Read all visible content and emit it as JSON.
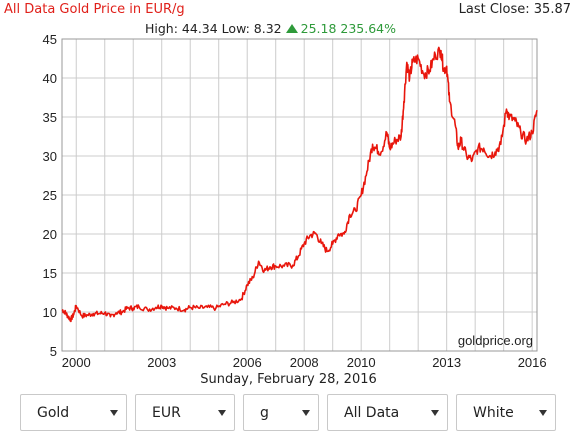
{
  "header": {
    "title": "All Data Gold Price in EUR/g",
    "last_close": "Last Close: 35.87",
    "high_low": "High: 44.34 Low: 8.32",
    "change": "25.18 235.64%",
    "up_icon": "triangle-up-icon"
  },
  "watermark": "goldprice.org",
  "date_label": "Sunday, February 28, 2016",
  "colors": {
    "line": "#e8160c",
    "title": "#e0201a",
    "change": "#2e9a3a",
    "grid": "#cccccc"
  },
  "chart_data": {
    "type": "line",
    "title": "All Data Gold Price in EUR/g",
    "xlabel": "",
    "ylabel": "",
    "xlim": [
      1999.5,
      2016.17
    ],
    "ylim": [
      5,
      45
    ],
    "yticks": [
      5,
      10,
      15,
      20,
      25,
      30,
      35,
      40,
      45
    ],
    "xticks": [
      2000,
      2003,
      2006,
      2008,
      2010,
      2013,
      2016
    ],
    "grid": true,
    "series": [
      {
        "x": [
          1999.5,
          1999.6,
          1999.7,
          1999.8,
          1999.9,
          2000.0,
          2000.2,
          2000.4,
          2000.6,
          2000.8,
          2001.0,
          2001.2,
          2001.4,
          2001.6,
          2001.8,
          2002.0,
          2002.2,
          2002.5,
          2002.8,
          2003.0,
          2003.2,
          2003.5,
          2003.8,
          2004.0,
          2004.3,
          2004.6,
          2004.9,
          2005.2,
          2005.5,
          2005.8,
          2006.0,
          2006.2,
          2006.4,
          2006.6,
          2006.8,
          2007.0,
          2007.3,
          2007.6,
          2007.8,
          2008.0,
          2008.2,
          2008.4,
          2008.6,
          2008.8,
          2009.0,
          2009.2,
          2009.4,
          2009.6,
          2009.8,
          2010.0,
          2010.2,
          2010.4,
          2010.5,
          2010.7,
          2010.9,
          2011.0,
          2011.2,
          2011.4,
          2011.5,
          2011.6,
          2011.7,
          2011.8,
          2012.0,
          2012.2,
          2012.4,
          2012.6,
          2012.8,
          2012.9,
          2013.0,
          2013.1,
          2013.3,
          2013.4,
          2013.5,
          2013.7,
          2013.9,
          2014.1,
          2014.3,
          2014.5,
          2014.7,
          2014.9,
          2015.1,
          2015.2,
          2015.4,
          2015.6,
          2015.8,
          2016.0,
          2016.17
        ],
        "y": [
          10.3,
          10.0,
          9.5,
          9.0,
          9.6,
          10.8,
          9.5,
          9.6,
          9.8,
          9.8,
          9.9,
          9.4,
          9.9,
          10.0,
          10.5,
          10.5,
          10.7,
          10.3,
          10.6,
          10.8,
          10.5,
          10.5,
          10.3,
          10.6,
          10.5,
          10.6,
          10.5,
          11.0,
          11.2,
          11.7,
          13.5,
          14.4,
          16.5,
          15.3,
          15.8,
          15.9,
          15.9,
          16.0,
          17.2,
          18.8,
          19.8,
          20.1,
          18.8,
          17.8,
          18.7,
          20.0,
          20.0,
          22.5,
          23.0,
          25.0,
          28.0,
          31.5,
          31.0,
          30.5,
          33.0,
          31.0,
          32.0,
          32.5,
          37.0,
          42.0,
          40.0,
          42.0,
          42.5,
          40.5,
          41.0,
          43.0,
          43.5,
          41.0,
          41.5,
          37.0,
          34.0,
          31.0,
          32.0,
          30.0,
          29.5,
          31.0,
          31.0,
          30.0,
          30.5,
          31.5,
          36.0,
          35.0,
          34.5,
          33.0,
          32.0,
          33.0,
          35.87
        ]
      }
    ]
  },
  "controls": [
    {
      "name": "metal-select",
      "label": "Gold",
      "width": 107
    },
    {
      "name": "currency-select",
      "label": "EUR",
      "width": 100
    },
    {
      "name": "unit-select",
      "label": "g",
      "width": 76
    },
    {
      "name": "range-select",
      "label": "All Data",
      "width": 121
    },
    {
      "name": "theme-select",
      "label": "White",
      "width": 100
    }
  ]
}
